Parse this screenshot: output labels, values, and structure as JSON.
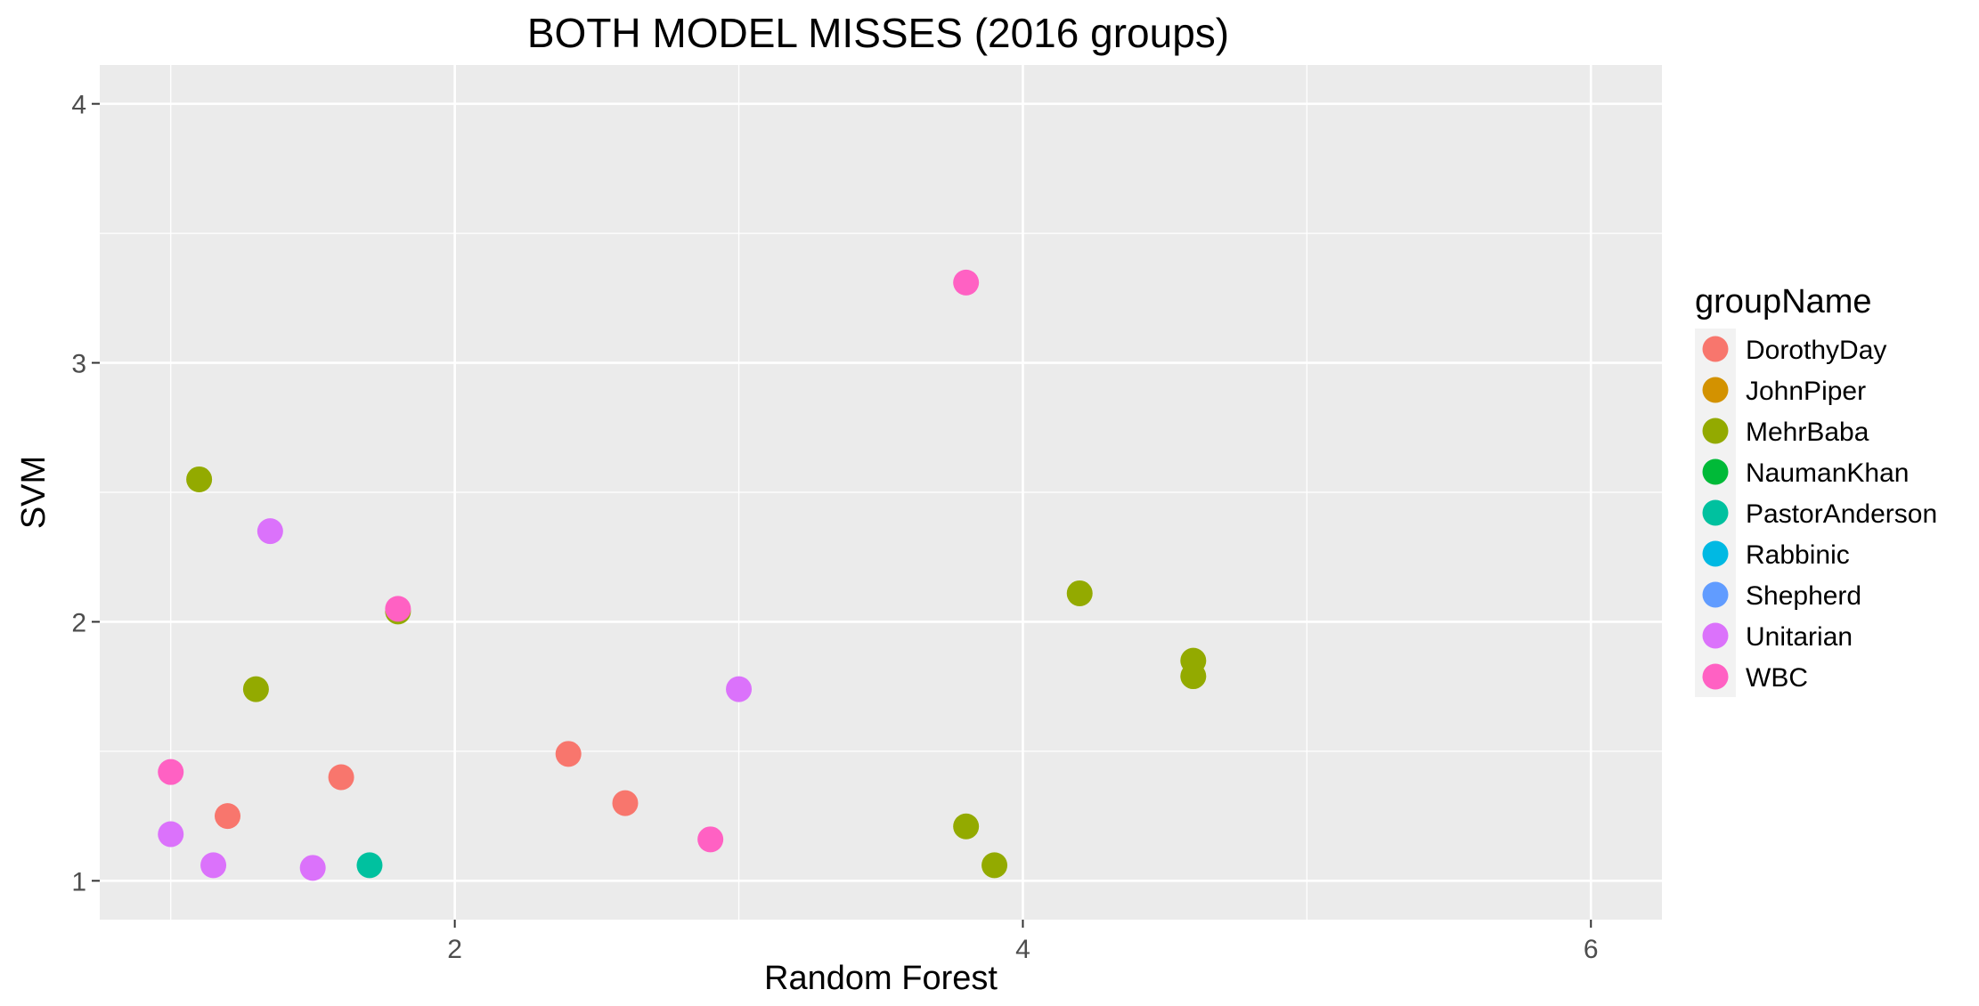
{
  "chart_data": {
    "type": "scatter",
    "title": "BOTH MODEL MISSES (2016 groups)",
    "xlabel": "Random Forest",
    "ylabel": "SVM",
    "xlim": [
      0.75,
      6.25
    ],
    "ylim": [
      0.85,
      4.15
    ],
    "x_ticks": [
      2,
      4,
      6
    ],
    "y_ticks": [
      1,
      2,
      3,
      4
    ],
    "x_minor": [
      1,
      3,
      5
    ],
    "y_minor": [
      1.5,
      2.5,
      3.5
    ],
    "grid": true,
    "legend": {
      "title": "groupName",
      "position": "right"
    },
    "series": [
      {
        "name": "DorothyDay",
        "color": "#F8766D",
        "points": [
          [
            1.2,
            1.25
          ],
          [
            1.6,
            1.4
          ],
          [
            2.4,
            1.49
          ],
          [
            2.6,
            1.3
          ]
        ]
      },
      {
        "name": "JohnPiper",
        "color": "#D39200",
        "points": []
      },
      {
        "name": "MehrBaba",
        "color": "#93AA00",
        "points": [
          [
            1.1,
            2.55
          ],
          [
            1.3,
            1.74
          ],
          [
            1.8,
            2.04
          ],
          [
            3.8,
            1.21
          ],
          [
            3.9,
            1.06
          ],
          [
            4.2,
            2.11
          ],
          [
            4.6,
            1.85
          ],
          [
            4.6,
            1.79
          ]
        ]
      },
      {
        "name": "NaumanKhan",
        "color": "#00BA38",
        "points": []
      },
      {
        "name": "PastorAnderson",
        "color": "#00C19F",
        "points": [
          [
            1.7,
            1.06
          ]
        ]
      },
      {
        "name": "Rabbinic",
        "color": "#00B9E3",
        "points": []
      },
      {
        "name": "Shepherd",
        "color": "#619CFF",
        "points": []
      },
      {
        "name": "Unitarian",
        "color": "#DB72FB",
        "points": [
          [
            1.0,
            1.18
          ],
          [
            1.15,
            1.06
          ],
          [
            1.35,
            2.35
          ],
          [
            1.5,
            1.05
          ],
          [
            3.0,
            1.74
          ]
        ]
      },
      {
        "name": "WBC",
        "color": "#FF61C3",
        "points": [
          [
            1.0,
            1.42
          ],
          [
            1.8,
            2.05
          ],
          [
            2.9,
            1.16
          ],
          [
            3.8,
            3.31
          ]
        ]
      }
    ]
  }
}
